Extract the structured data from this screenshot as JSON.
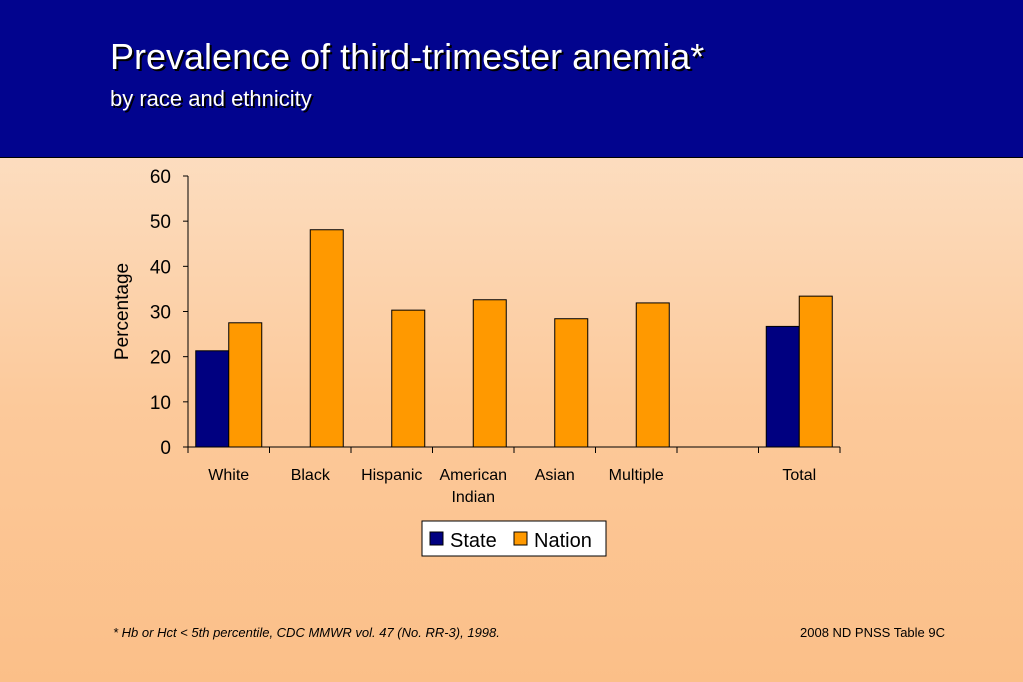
{
  "header": {
    "title": "Prevalence of third-trimester anemia*",
    "subtitle": "by race and ethnicity"
  },
  "footer": {
    "footnote": "*  Hb or Hct < 5th percentile, CDC MMWR vol. 47 (No. RR-3), 1998.",
    "source": "2008 ND PNSS Table 9C"
  },
  "colors": {
    "header_bg": "#02048e",
    "state": "#000080",
    "nation": "#ff9900"
  },
  "chart_data": {
    "type": "bar",
    "ylabel": "Percentage",
    "ylim": [
      0,
      60
    ],
    "yticks": [
      0,
      10,
      20,
      30,
      40,
      50,
      60
    ],
    "categories": [
      [
        "White"
      ],
      [
        "Black"
      ],
      [
        "Hispanic"
      ],
      [
        "American",
        "Indian"
      ],
      [
        "Asian"
      ],
      [
        "Multiple"
      ],
      [
        ""
      ],
      [
        "Total"
      ]
    ],
    "series": [
      {
        "name": "State",
        "color": "#000080",
        "values": [
          21.3,
          null,
          null,
          null,
          null,
          null,
          null,
          26.7
        ]
      },
      {
        "name": "Nation",
        "color": "#ff9900",
        "values": [
          27.5,
          48.1,
          30.3,
          32.6,
          28.4,
          31.9,
          null,
          33.4
        ]
      }
    ],
    "legend_position": "bottom"
  }
}
